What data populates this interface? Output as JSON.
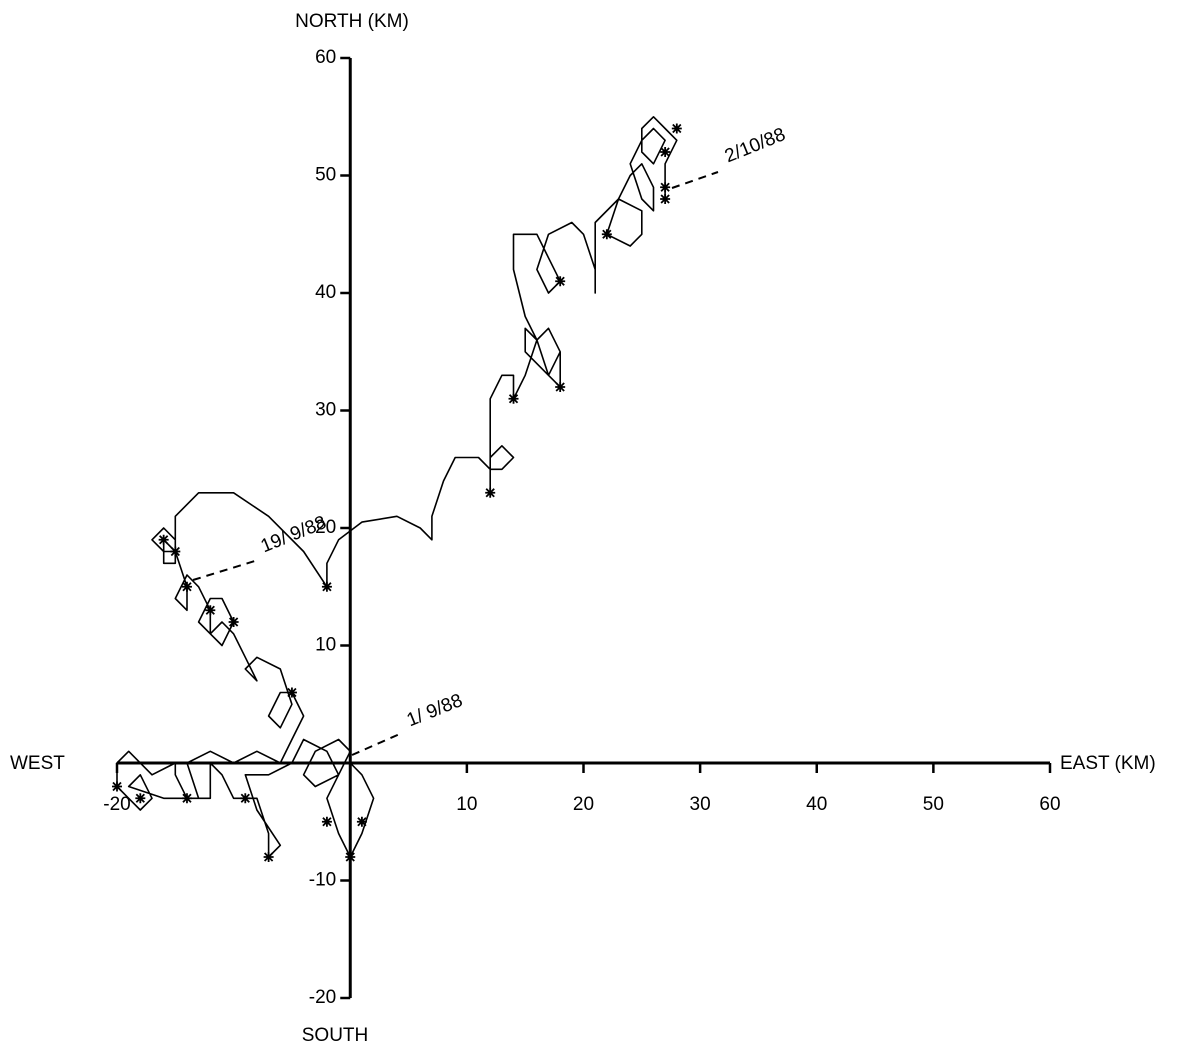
{
  "chart_data": {
    "type": "line",
    "x_label_pos": "EAST (KM)",
    "x_label_neg": "WEST",
    "y_label_pos": "NORTH (KM)",
    "y_label_neg": "SOUTH",
    "xlim": [
      -20,
      60
    ],
    "ylim": [
      -20,
      60
    ],
    "xticks": [
      -20,
      10,
      20,
      30,
      40,
      50,
      60
    ],
    "yticks": [
      -20,
      -10,
      10,
      20,
      30,
      40,
      50,
      60
    ],
    "color": "#000000",
    "series": [
      {
        "color": "#000000",
        "x": [
          0,
          1,
          2,
          1,
          0,
          -1,
          -2,
          -1,
          0,
          -1,
          -3,
          -4,
          -3,
          -1,
          -2,
          -4,
          -5,
          -7,
          -9,
          -8,
          -6,
          -7,
          -7,
          -8,
          -10,
          -11,
          -12,
          -12,
          -14,
          -15,
          -15,
          -17,
          -19,
          -20,
          -20,
          -18,
          -17,
          -18,
          -19,
          -16,
          -13,
          -14,
          -12,
          -10,
          -8,
          -6,
          -5,
          -4,
          -5,
          -6,
          -7,
          -6,
          -5,
          -6,
          -8,
          -9,
          -8,
          -9,
          -10,
          -11,
          -12,
          -11,
          -10,
          -11,
          -12,
          -13,
          -12,
          -12,
          -13,
          -14,
          -15,
          -14,
          -14,
          -15,
          -16,
          -16,
          -15,
          -15,
          -16,
          -17,
          -16,
          -15,
          -15,
          -13,
          -10,
          -7,
          -4,
          -2,
          -2,
          -1,
          1,
          4,
          6,
          7,
          7,
          8,
          9,
          11,
          12,
          13,
          14,
          13,
          12,
          12,
          12,
          12,
          12,
          13,
          14,
          14,
          15,
          16,
          17,
          18,
          18,
          17,
          16,
          15,
          15,
          17,
          18,
          17,
          16,
          15,
          14,
          14,
          16,
          17,
          18,
          17,
          16,
          17,
          19,
          20,
          21,
          21,
          21,
          21,
          23,
          25,
          25,
          24,
          22,
          23,
          24,
          25,
          26,
          26,
          25,
          24,
          25,
          26,
          27,
          26,
          25,
          25,
          26,
          27,
          28,
          27,
          27,
          27
        ],
        "y": [
          0,
          -1,
          -3,
          -6,
          -8,
          -6,
          -3,
          -1,
          1,
          2,
          1,
          -1,
          -2,
          -1,
          1,
          2,
          0,
          -1,
          -1,
          -4,
          -7,
          -8,
          -6,
          -3,
          -3,
          -1,
          0,
          -3,
          -3,
          -1,
          0,
          -1,
          1,
          0,
          -2,
          -4,
          -3,
          -1,
          -2,
          -3,
          -3,
          0,
          1,
          0,
          1,
          0,
          2,
          4,
          6,
          6,
          4,
          3,
          5,
          8,
          9,
          8,
          7,
          9,
          11,
          12,
          11,
          10,
          12,
          14,
          14,
          12,
          11,
          13,
          15,
          16,
          14,
          13,
          15,
          18,
          19,
          17,
          17,
          19,
          20,
          19,
          18,
          18,
          21,
          23,
          23,
          21,
          18,
          15,
          17,
          19,
          20.5,
          21,
          20,
          19,
          21,
          24,
          26,
          26,
          25,
          25,
          26,
          27,
          26,
          23,
          25,
          28,
          31,
          33,
          33,
          31,
          33,
          36,
          37,
          35,
          32,
          33,
          36,
          37,
          35,
          33,
          35,
          37,
          36,
          38,
          42,
          45,
          45,
          43,
          41,
          40,
          42,
          45,
          46,
          45,
          42,
          40,
          43,
          46,
          48,
          47,
          45,
          44,
          45,
          48,
          50,
          51,
          49,
          47,
          48,
          51,
          53,
          54,
          53,
          51,
          52,
          54,
          55,
          54,
          53,
          51,
          49,
          48
        ]
      }
    ],
    "markers": {
      "x": [
        0,
        -7,
        -2,
        1,
        -9,
        -14,
        -20,
        -18,
        -16,
        -15,
        -14,
        -12,
        -10,
        -5,
        -2,
        12,
        14,
        18,
        18,
        22,
        27,
        27,
        28,
        27
      ],
      "y": [
        -8,
        -8,
        -5,
        -5,
        -3,
        -3,
        -2,
        -3,
        19,
        18,
        15,
        13,
        12,
        6,
        15,
        23,
        31,
        32,
        41,
        45,
        48,
        52,
        54,
        49
      ]
    },
    "annotations": [
      "2/10/88",
      "1/ 9/88",
      "19/ 9/88"
    ]
  }
}
